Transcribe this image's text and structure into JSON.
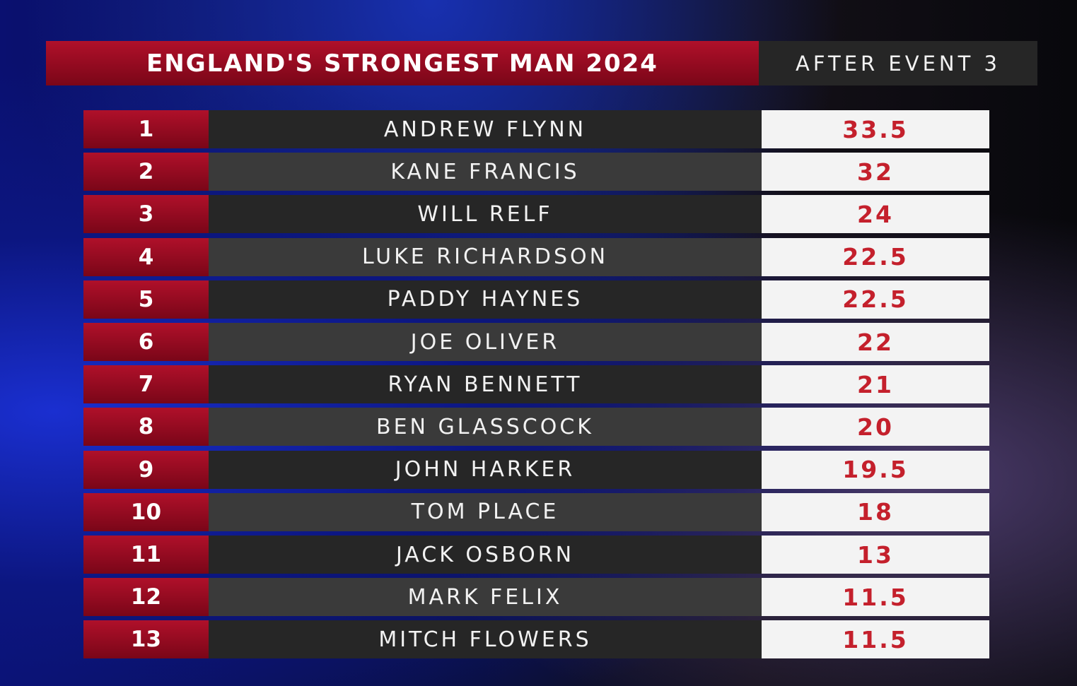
{
  "header": {
    "title": "ENGLAND'S STRONGEST MAN 2024",
    "subtitle": "AFTER EVENT 3"
  },
  "colors": {
    "rank_red": "#a00c24",
    "score_text": "#c4202c",
    "row_dark": "#262626",
    "row_light": "#3a3a3a",
    "score_bg": "#f3f3f3"
  },
  "standings": [
    {
      "rank": "1",
      "name": "ANDREW FLYNN",
      "points": "33.5"
    },
    {
      "rank": "2",
      "name": "KANE FRANCIS",
      "points": "32"
    },
    {
      "rank": "3",
      "name": "WILL RELF",
      "points": "24"
    },
    {
      "rank": "4",
      "name": "LUKE RICHARDSON",
      "points": "22.5"
    },
    {
      "rank": "5",
      "name": "PADDY HAYNES",
      "points": "22.5"
    },
    {
      "rank": "6",
      "name": "JOE OLIVER",
      "points": "22"
    },
    {
      "rank": "7",
      "name": "RYAN BENNETT",
      "points": "21"
    },
    {
      "rank": "8",
      "name": "BEN GLASSCOCK",
      "points": "20"
    },
    {
      "rank": "9",
      "name": "JOHN HARKER",
      "points": "19.5"
    },
    {
      "rank": "10",
      "name": "TOM PLACE",
      "points": "18"
    },
    {
      "rank": "11",
      "name": "JACK OSBORN",
      "points": "13"
    },
    {
      "rank": "12",
      "name": "MARK FELIX",
      "points": "11.5"
    },
    {
      "rank": "13",
      "name": "MITCH FLOWERS",
      "points": "11.5"
    }
  ]
}
